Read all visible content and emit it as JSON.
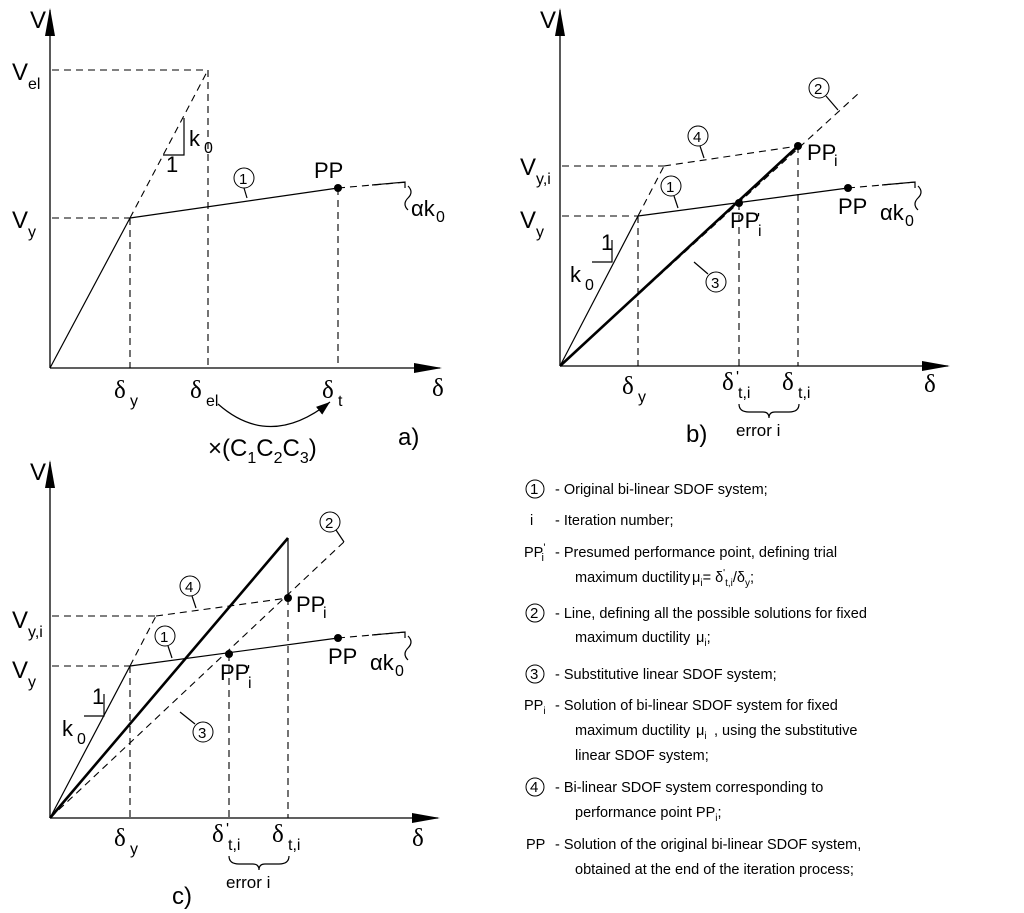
{
  "axes": {
    "v": "V",
    "delta": "δ"
  },
  "labels": {
    "Vel": "V",
    "Vel_sub": "el",
    "Vy": "V",
    "Vy_sub": "y",
    "Vyi": "V",
    "Vyi_sub": "y,i",
    "k0": "k",
    "k0_sub": "0",
    "one": "1",
    "pp": "PP",
    "ppi": "PP",
    "ppi_sub": "i",
    "ppi_prime": "PP",
    "ppi_prime_sub": "i",
    "prime": "'",
    "alpha_k0": "αk",
    "alpha_sub": "0",
    "delta_y": "δ",
    "delta_y_sub": "y",
    "delta_el": "δ",
    "delta_el_sub": "el",
    "delta_t": "δ",
    "delta_t_sub": "t",
    "delta_ti": "δ",
    "delta_ti_sub": "t,i",
    "error": "error i",
    "factor": "×(C",
    "c1": "1",
    "c_mid": "C",
    "c2": "2",
    "c3": "3",
    "factor_end": ")",
    "panel_a": "a)",
    "panel_b": "b)",
    "panel_c": "c)",
    "n1": "1",
    "n2": "2",
    "n3": "3",
    "n4": "4"
  },
  "legend": {
    "items": [
      {
        "lines": [
          "- Original bi-linear SDOF system;"
        ]
      },
      {
        "key": "i",
        "lines": [
          "- Iteration number;"
        ]
      },
      {
        "lines": [
          "- Presumed performance point, defining trial",
          "maximum ductility"
        ],
        "formula": "μ",
        "formula_sub": "i",
        "formula_rest": "= δ",
        "formula_rest_sub": "t,i",
        "formula_end": "/δ",
        "formula_end_sub": "y",
        "formula_tail": ";"
      },
      {
        "lines": [
          "- Line, defining all the possible solutions for fixed",
          "maximum ductility"
        ],
        "formula": "μ",
        "formula_sub": "i",
        "formula_tail": ";"
      },
      {
        "lines": [
          "- Substitutive linear SDOF system;"
        ]
      },
      {
        "lines": [
          "- Solution of bi-linear SDOF system for fixed",
          "maximum ductility",
          ", using the substitutive",
          "linear SDOF system;"
        ],
        "formula": "μ",
        "formula_sub": "i"
      },
      {
        "lines": [
          "- Bi-linear SDOF system corresponding to",
          "performance point PP"
        ],
        "sub": "i",
        "tail": ";"
      },
      {
        "key": "PP",
        "lines": [
          "- Solution of the original bi-linear SDOF system,",
          "obtained at the end of the iteration process;"
        ]
      }
    ]
  }
}
